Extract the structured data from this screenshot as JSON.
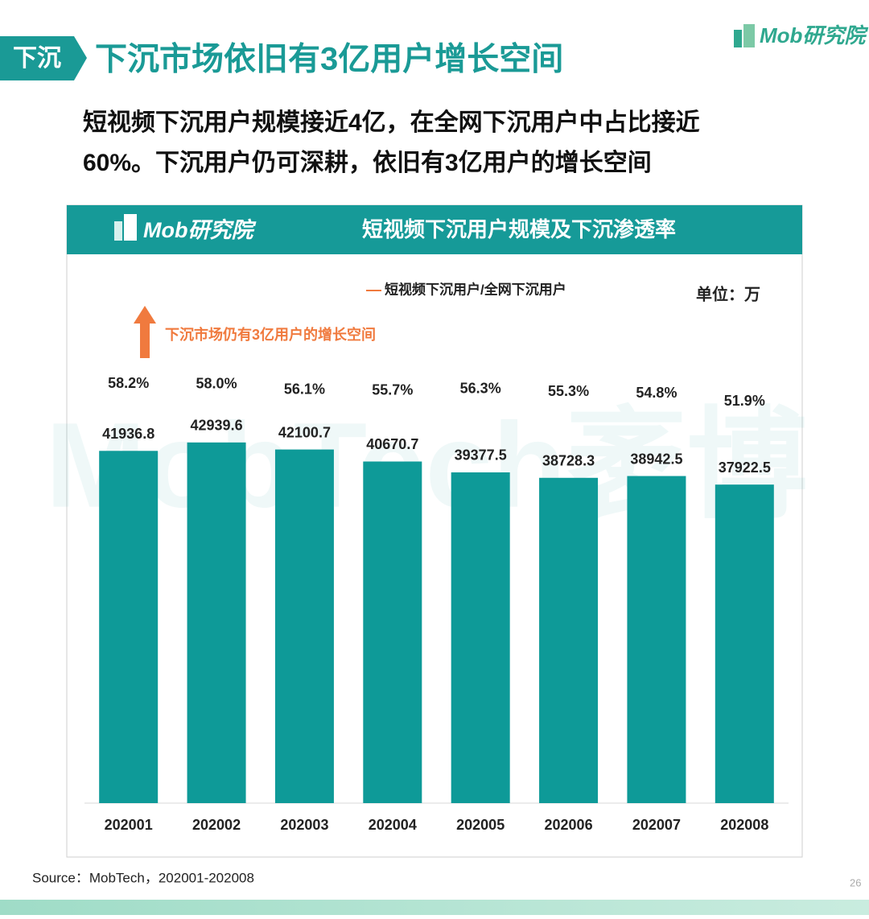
{
  "brand": "Mob研究院",
  "section_tag": "下沉",
  "headline": "下沉市场依旧有3亿用户增长空间",
  "subtitle": [
    "短视频下沉用户规模接近4亿，在全网下沉用户中占比接近",
    "60%。下沉用户仍可深耕，依旧有3亿用户的增长空间"
  ],
  "watermark": "MobTech袤博",
  "source": "Source：MobTech，202001-202008",
  "page_number": "26",
  "chart_data": {
    "type": "bar-line",
    "title": "短视频下沉用户规模及下沉渗透率",
    "unit": "单位：万",
    "annotation": "下沉市场仍有3亿用户的增长空间",
    "categories": [
      "202001",
      "202002",
      "202003",
      "202004",
      "202005",
      "202006",
      "202007",
      "202008"
    ],
    "series": [
      {
        "name": null,
        "type": "bar",
        "color": "#0e9a98",
        "values": [
          41936.8,
          42939.6,
          42100.7,
          40670.7,
          39377.5,
          38728.3,
          38942.5,
          37922.5
        ]
      },
      {
        "name": "短视频下沉用户/全网下沉用户",
        "type": "line",
        "axis": "y2",
        "color": "#f07a3e",
        "values": [
          58.2,
          58.0,
          56.1,
          55.7,
          56.3,
          55.3,
          54.8,
          51.9
        ],
        "value_labels": [
          "58.2%",
          "58.0%",
          "56.1%",
          "55.7%",
          "56.3%",
          "55.3%",
          "54.8%",
          "51.9%"
        ]
      }
    ],
    "ylim": [
      0,
      64000
    ],
    "y2lim": [
      -85,
      106
    ]
  }
}
